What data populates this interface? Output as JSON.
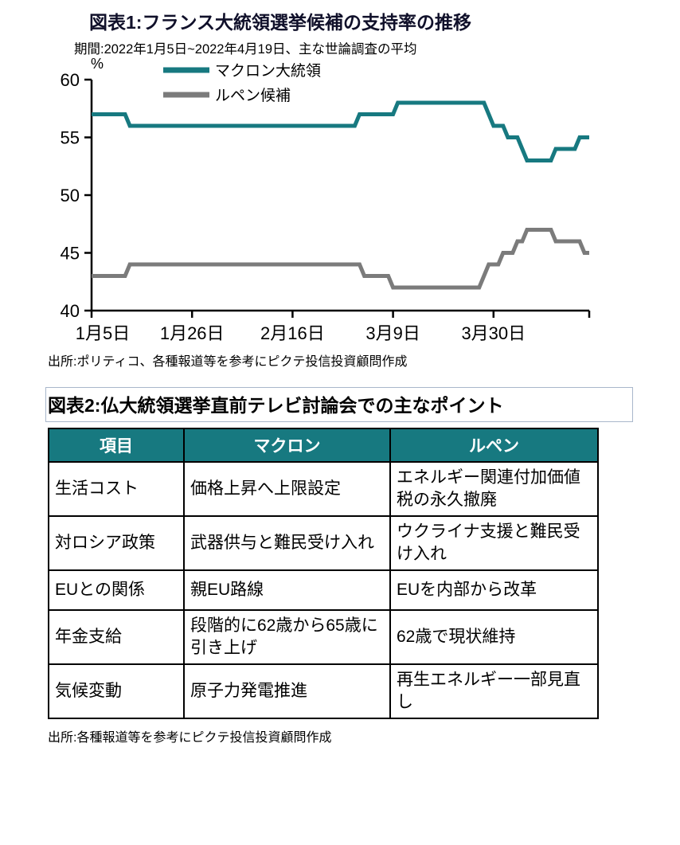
{
  "figure1": {
    "title": "図表1:フランス大統領選挙候補の支持率の推移",
    "subtitle": "期間:2022年1月5日~2022年4月19日、主な世論調査の平均",
    "source": "出所:ポリティコ、各種報道等を参考にピクテ投信投資顧問作成"
  },
  "chart_data": {
    "type": "line",
    "title": "フランス大統領選挙候補の支持率の推移",
    "xlabel": "",
    "ylabel": "%",
    "ylim": [
      40,
      60
    ],
    "y_ticks": [
      40,
      45,
      50,
      55,
      60
    ],
    "x_range": [
      0,
      104
    ],
    "x_tick_positions": [
      0,
      21,
      42,
      63,
      84
    ],
    "x_tick_labels": [
      "1月5日",
      "1月26日",
      "2月16日",
      "3月9日",
      "3月30日"
    ],
    "grid": false,
    "legend_position": "top-left-inside",
    "series": [
      {
        "name": "マクロン大統領",
        "color": "#177980",
        "points": [
          [
            0,
            57
          ],
          [
            7,
            57
          ],
          [
            8,
            56
          ],
          [
            55,
            56
          ],
          [
            56,
            57
          ],
          [
            63,
            57
          ],
          [
            64,
            58
          ],
          [
            82,
            58
          ],
          [
            83,
            57
          ],
          [
            84,
            56
          ],
          [
            86,
            56
          ],
          [
            87,
            55
          ],
          [
            89,
            55
          ],
          [
            90,
            54
          ],
          [
            91,
            53
          ],
          [
            96,
            53
          ],
          [
            97,
            54
          ],
          [
            101,
            54
          ],
          [
            102,
            55
          ],
          [
            104,
            55
          ]
        ]
      },
      {
        "name": "ルペン候補",
        "color": "#7b7b7b",
        "points": [
          [
            0,
            43
          ],
          [
            7,
            43
          ],
          [
            8,
            44
          ],
          [
            56,
            44
          ],
          [
            57,
            43
          ],
          [
            62,
            43
          ],
          [
            63,
            42
          ],
          [
            81,
            42
          ],
          [
            83,
            44
          ],
          [
            85,
            44
          ],
          [
            86,
            45
          ],
          [
            88,
            45
          ],
          [
            89,
            46
          ],
          [
            90,
            46
          ],
          [
            91,
            47
          ],
          [
            96,
            47
          ],
          [
            97,
            46
          ],
          [
            102,
            46
          ],
          [
            103,
            45
          ],
          [
            104,
            45
          ]
        ]
      }
    ]
  },
  "figure2": {
    "title": "図表2:仏大統領選挙直前テレビ討論会での主なポイント",
    "table": {
      "headers": [
        "項目",
        "マクロン",
        "ルペン"
      ],
      "rows": [
        [
          "生活コスト",
          "価格上昇へ上限設定",
          "エネルギー関連付加価値税の永久撤廃"
        ],
        [
          "対ロシア政策",
          "武器供与と難民受け入れ",
          "ウクライナ支援と難民受け入れ"
        ],
        [
          "EUとの関係",
          "親EU路線",
          "EUを内部から改革"
        ],
        [
          "年金支給",
          "段階的に62歳から65歳に引き上げ",
          "62歳で現状維持"
        ],
        [
          "気候変動",
          "原子力発電推進",
          "再生エネルギー一部見直し"
        ]
      ]
    },
    "source": "出所:各種報道等を参考にピクテ投信投資顧問作成"
  }
}
